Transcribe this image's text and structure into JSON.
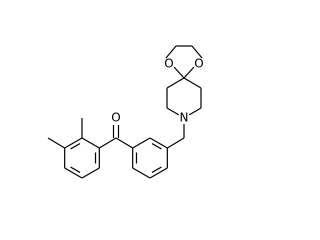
{
  "atoms": {
    "carbonyl_oxygen": "O",
    "dioxolane_oxygen_left": "O",
    "dioxolane_oxygen_right": "O",
    "nitrogen": "N"
  }
}
